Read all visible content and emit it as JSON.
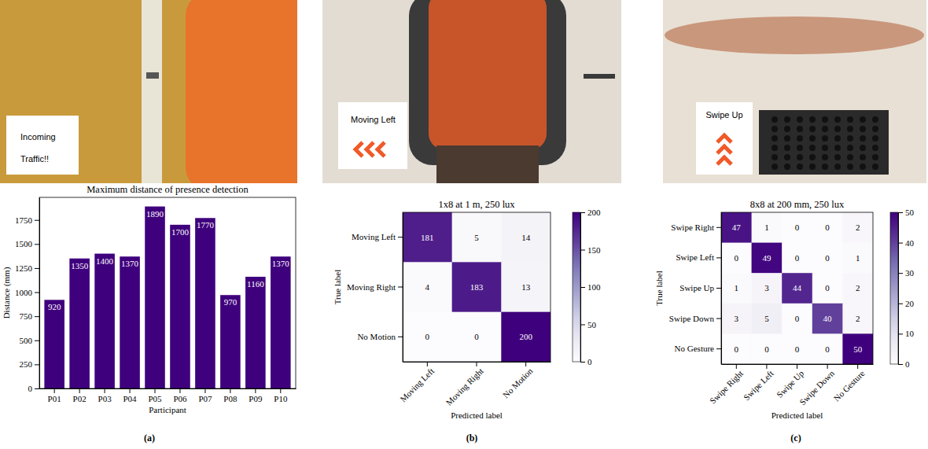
{
  "chart_data": [
    {
      "type": "bar",
      "panel": "(a)",
      "photo_caption": "Incoming Traffic!!",
      "title": "Maximum distance of presence detection",
      "xlabel": "Participant",
      "ylabel": "Distance (mm)",
      "categories": [
        "P01",
        "P02",
        "P03",
        "P04",
        "P05",
        "P06",
        "P07",
        "P08",
        "P09",
        "P10"
      ],
      "values": [
        920,
        1350,
        1400,
        1370,
        1890,
        1700,
        1770,
        970,
        1160,
        1370
      ],
      "color": "#3f007d",
      "ylim": [
        0,
        1984.5
      ],
      "yticks": [
        0,
        250,
        500,
        750,
        1000,
        1250,
        1500,
        1750
      ],
      "data_labels": true
    },
    {
      "type": "heatmap",
      "panel": "(b)",
      "photo_caption": "Moving Left",
      "title": "1x8 at 1 m, 250 lux",
      "xlabel": "Predicted label",
      "ylabel": "True label",
      "x": [
        "Moving Left",
        "Moving Right",
        "No Motion"
      ],
      "y": [
        "Moving Left",
        "Moving Right",
        "No Motion"
      ],
      "values": [
        [
          181,
          5,
          14
        ],
        [
          4,
          183,
          13
        ],
        [
          0,
          0,
          200
        ]
      ],
      "color": "Purples",
      "color_range": [
        0,
        200
      ],
      "color_ticks": [
        0,
        50,
        100,
        150,
        200
      ],
      "data_labels": true
    },
    {
      "type": "heatmap",
      "panel": "(c)",
      "photo_caption": "Swipe Up",
      "title": "8x8 at 200 mm, 250 lux",
      "xlabel": "Predicted label",
      "ylabel": "True label",
      "x": [
        "Swipe Right",
        "Swipe Left",
        "Swipe Up",
        "Swipe Down",
        "No Gesture"
      ],
      "y": [
        "Swipe Right",
        "Swipe Left",
        "Swipe Up",
        "Swipe Down",
        "No Gesture"
      ],
      "values": [
        [
          47,
          1,
          0,
          0,
          2
        ],
        [
          0,
          49,
          0,
          0,
          1
        ],
        [
          1,
          3,
          44,
          0,
          2
        ],
        [
          3,
          5,
          0,
          40,
          2
        ],
        [
          0,
          0,
          0,
          0,
          50
        ]
      ],
      "color": "Purples",
      "color_range": [
        0,
        50
      ],
      "color_ticks": [
        0,
        10,
        20,
        30,
        40,
        50
      ],
      "data_labels": true
    }
  ]
}
